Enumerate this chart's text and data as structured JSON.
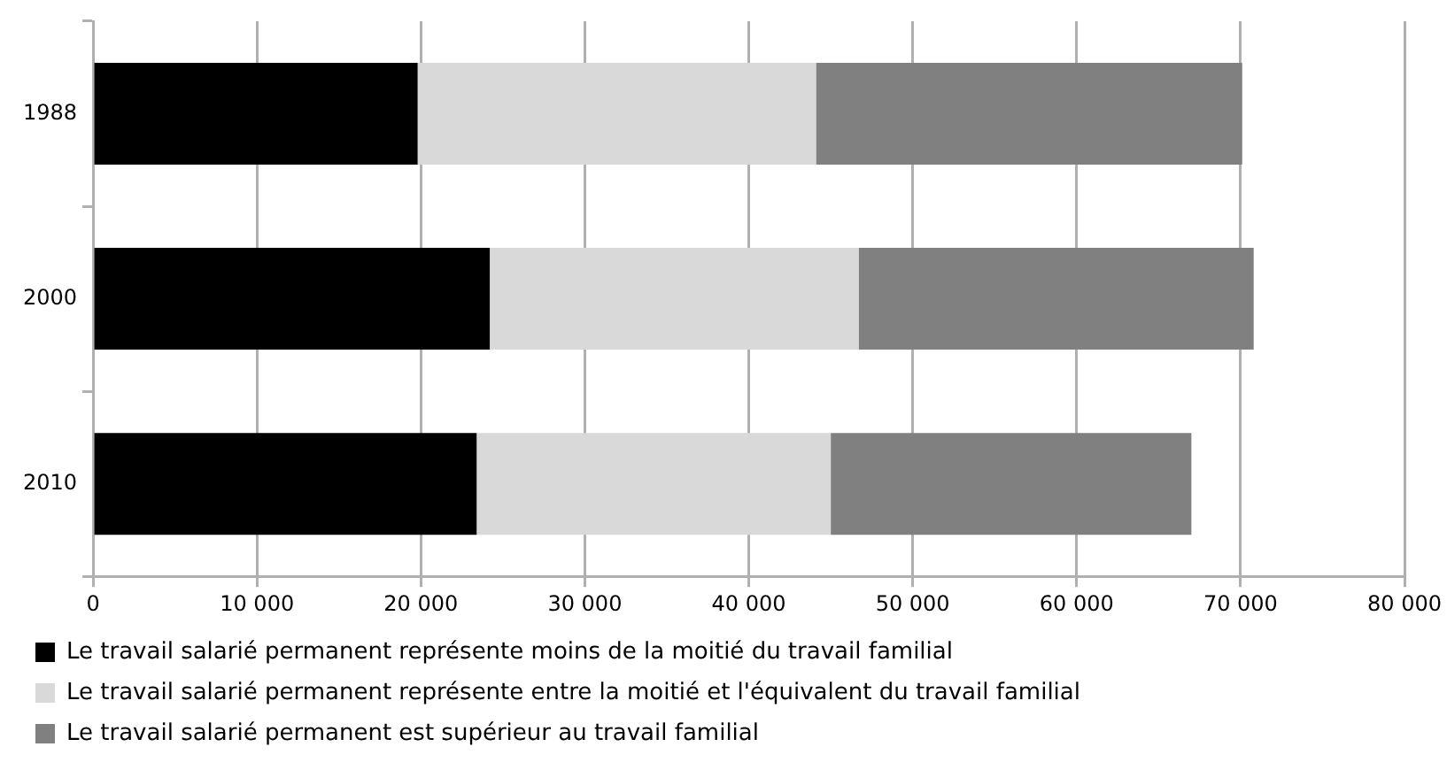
{
  "chart_data": {
    "type": "bar",
    "orientation": "horizontal",
    "stacked": true,
    "categories": [
      "1988",
      "2000",
      "2010"
    ],
    "series": [
      {
        "name": "Le travail salarié permanent représente moins de la moitié du travail familial",
        "color": "#000000",
        "values": [
          19800,
          24200,
          23400
        ]
      },
      {
        "name": "Le travail salarié permanent représente entre la moitié et l'équivalent du travail familial",
        "color": "#d9d9d9",
        "values": [
          24300,
          22500,
          21600
        ]
      },
      {
        "name": "Le travail salarié permanent est supérieur au travail familial",
        "color": "#808080",
        "values": [
          26000,
          24100,
          22000
        ]
      }
    ],
    "xlim": [
      0,
      80000
    ],
    "xticks": [
      {
        "value": 0,
        "label": "0"
      },
      {
        "value": 10000,
        "label": "10 000"
      },
      {
        "value": 20000,
        "label": "20 000"
      },
      {
        "value": 30000,
        "label": "30 000"
      },
      {
        "value": 40000,
        "label": "40 000"
      },
      {
        "value": 50000,
        "label": "50 000"
      },
      {
        "value": 60000,
        "label": "60 000"
      },
      {
        "value": 70000,
        "label": "70 000"
      },
      {
        "value": 80000,
        "label": "80 000"
      }
    ],
    "grid": "x",
    "legend": "bottom left"
  }
}
